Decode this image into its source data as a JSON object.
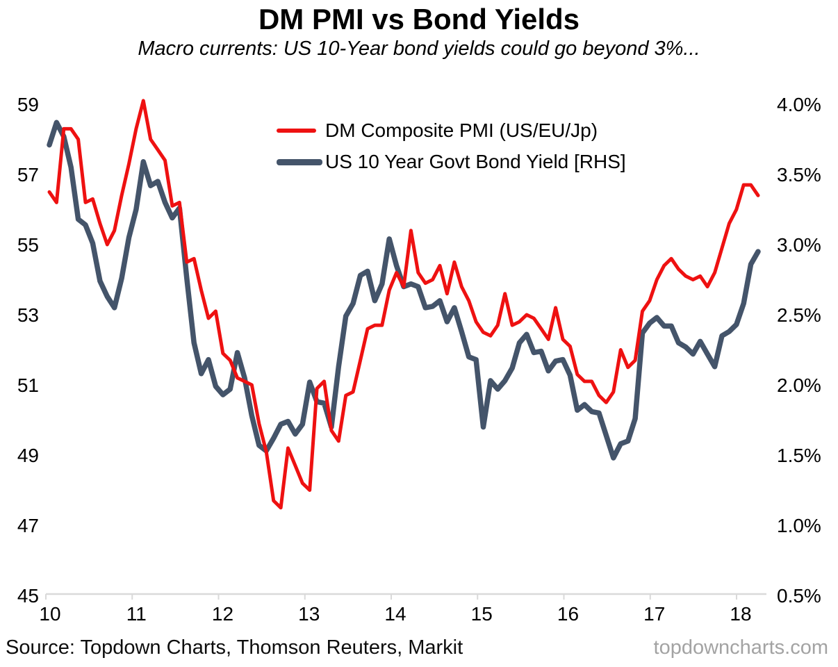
{
  "header": {
    "title": "DM PMI vs Bond Yields",
    "subtitle": "Macro currents: US 10-Year bond yields could go beyond 3%..."
  },
  "footer": {
    "source": "Source: Topdown Charts, Thomson Reuters, Markit",
    "watermark": "topdowncharts.com"
  },
  "chart_data": {
    "type": "line",
    "title": "DM PMI vs Bond Yields",
    "subtitle": "Macro currents: US 10-Year bond yields could go beyond 3%...",
    "x_unit": "monthly",
    "x_start_label": "2010-01",
    "x_end_label": "2018-03",
    "x_tick_labels": [
      "10",
      "11",
      "12",
      "13",
      "14",
      "15",
      "16",
      "17",
      "18"
    ],
    "grid": false,
    "legend_position": "top-center-inside",
    "left_axis": {
      "range": [
        45,
        59
      ],
      "tick_labels": [
        "59",
        "57",
        "55",
        "53",
        "51",
        "49",
        "47",
        "45"
      ]
    },
    "right_axis": {
      "range": [
        0.5,
        4.0
      ],
      "tick_labels": [
        "4.0%",
        "3.5%",
        "3.0%",
        "2.5%",
        "2.0%",
        "1.5%",
        "1.0%",
        "0.5%"
      ]
    },
    "series": [
      {
        "name": "DM Composite PMI (US/EU/Jp)",
        "axis": "left",
        "color": "#ee1111",
        "stroke_width": 5,
        "values": [
          56.5,
          56.2,
          58.3,
          58.3,
          58.0,
          56.2,
          56.3,
          55.6,
          55.0,
          55.4,
          56.4,
          57.3,
          58.3,
          59.1,
          58.0,
          57.7,
          57.4,
          56.1,
          56.2,
          54.5,
          54.6,
          53.7,
          52.9,
          53.1,
          51.9,
          51.7,
          51.2,
          51.1,
          51.0,
          49.9,
          49.1,
          47.7,
          47.5,
          49.2,
          48.7,
          48.2,
          48.0,
          50.9,
          51.1,
          49.7,
          49.4,
          50.7,
          50.8,
          51.7,
          52.6,
          52.7,
          52.7,
          53.7,
          54.2,
          53.8,
          55.4,
          54.2,
          53.9,
          54.0,
          54.4,
          53.6,
          54.5,
          53.8,
          53.4,
          52.8,
          52.5,
          52.4,
          52.7,
          53.6,
          52.7,
          52.8,
          53.0,
          52.9,
          52.6,
          52.3,
          53.2,
          52.3,
          52.1,
          51.3,
          51.1,
          51.1,
          50.7,
          50.5,
          50.8,
          52.0,
          51.5,
          51.7,
          53.1,
          53.4,
          54.0,
          54.4,
          54.6,
          54.3,
          54.1,
          54.0,
          54.1,
          53.8,
          54.2,
          54.9,
          55.6,
          56.0,
          56.7,
          56.7,
          56.4
        ]
      },
      {
        "name": "US 10 Year Govt Bond Yield [RHS]",
        "axis": "right",
        "color": "#44546a",
        "stroke_width": 7.5,
        "values": [
          3.71,
          3.87,
          3.77,
          3.55,
          3.18,
          3.14,
          3.01,
          2.74,
          2.63,
          2.55,
          2.76,
          3.05,
          3.25,
          3.59,
          3.42,
          3.45,
          3.3,
          3.19,
          3.26,
          2.76,
          2.3,
          2.08,
          2.18,
          1.99,
          1.93,
          1.97,
          2.23,
          2.05,
          1.78,
          1.57,
          1.53,
          1.62,
          1.72,
          1.74,
          1.65,
          1.72,
          2.02,
          1.88,
          1.87,
          1.7,
          2.13,
          2.49,
          2.58,
          2.78,
          2.81,
          2.6,
          2.72,
          3.04,
          2.85,
          2.7,
          2.72,
          2.7,
          2.55,
          2.56,
          2.6,
          2.45,
          2.55,
          2.38,
          2.2,
          2.18,
          1.7,
          2.03,
          1.97,
          2.03,
          2.12,
          2.3,
          2.36,
          2.23,
          2.24,
          2.1,
          2.17,
          2.18,
          2.07,
          1.82,
          1.86,
          1.81,
          1.8,
          1.64,
          1.48,
          1.58,
          1.6,
          1.76,
          2.37,
          2.44,
          2.48,
          2.42,
          2.42,
          2.3,
          2.27,
          2.22,
          2.31,
          2.22,
          2.13,
          2.35,
          2.38,
          2.43,
          2.58,
          2.86,
          2.95
        ]
      }
    ]
  }
}
